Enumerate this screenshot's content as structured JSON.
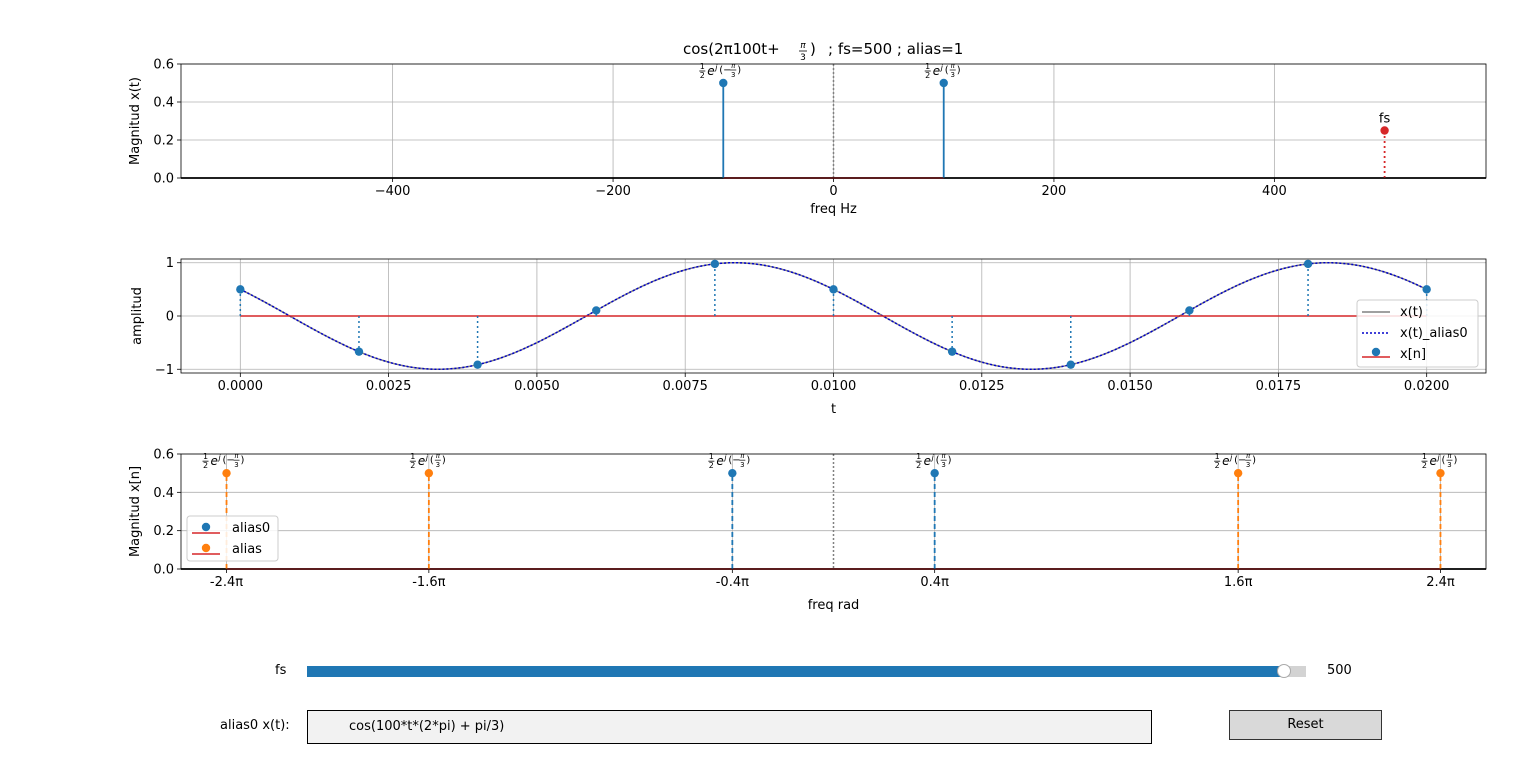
{
  "figure": {
    "title": "cos(2π100t + π/3)  ; fs=500  ; alias=1",
    "title_parts": {
      "main": "cos(2π100t+",
      "frac_num": "π",
      "frac_den": "3",
      "close": ")",
      "suffix": "; fs=500  ; alias=1"
    }
  },
  "chart_data": [
    {
      "type": "stem",
      "ylabel": "Magnitud x(t)",
      "xlabel": "freq Hz",
      "xlim": [
        -592,
        592
      ],
      "ylim": [
        0,
        0.6
      ],
      "xticks": [
        -400,
        -200,
        0,
        200,
        400
      ],
      "xtick_labels": [
        "−400",
        "−200",
        "0",
        "200",
        "400"
      ],
      "yticks": [
        0.0,
        0.2,
        0.4,
        0.6
      ],
      "ytick_labels": [
        "0.0",
        "0.2",
        "0.4",
        "0.6"
      ],
      "grid": true,
      "series": [
        {
          "color": "#1f77b4",
          "style": "solid",
          "points": [
            {
              "x": -100,
              "y": 0.5,
              "label": "½e^j(−π/3)"
            },
            {
              "x": 100,
              "y": 0.5,
              "label": "½e^j(π/3)"
            }
          ]
        },
        {
          "color": "#d62728",
          "style": "dotted",
          "points": [
            {
              "x": 500,
              "y": 0.25,
              "label": "fs"
            }
          ]
        }
      ],
      "vline": {
        "x": 0,
        "color": "#808080",
        "style": "dotted"
      },
      "baseline_segment": [
        -100,
        100
      ]
    },
    {
      "type": "line",
      "ylabel": "amplitud",
      "xlabel": "t",
      "xlim": [
        -0.001,
        0.021
      ],
      "ylim": [
        -1.07,
        1.07
      ],
      "xticks": [
        0,
        0.0025,
        0.005,
        0.0075,
        0.01,
        0.0125,
        0.015,
        0.0175,
        0.02
      ],
      "xtick_labels": [
        "0.0000",
        "0.0025",
        "0.0050",
        "0.0075",
        "0.0100",
        "0.0125",
        "0.0150",
        "0.0175",
        "0.0200"
      ],
      "yticks": [
        -1,
        0,
        1
      ],
      "ytick_labels": [
        "−1",
        "0",
        "1"
      ],
      "grid": true,
      "signal": {
        "freq": 100,
        "phase_over_pi": 0.3333333
      },
      "samples_t": [
        0,
        0.002,
        0.004,
        0.006,
        0.008,
        0.01,
        0.012,
        0.014,
        0.016,
        0.018,
        0.02
      ],
      "legend": {
        "location": "center-right",
        "entries": [
          "x(t)",
          "x(t)_alias0",
          "x[n]"
        ]
      },
      "colors": {
        "xt": "#808080",
        "alias": "#0000cc",
        "samples": "#1f77b4",
        "baseline": "#d62728"
      }
    },
    {
      "type": "stem",
      "ylabel": "Magnitud x[n]",
      "xlabel": "freq rad",
      "xlim_over_pi": [
        -2.58,
        2.58
      ],
      "ylim": [
        0,
        0.6
      ],
      "xticks_over_pi": [
        -2.4,
        -1.6,
        -0.4,
        0.4,
        1.6,
        2.4
      ],
      "xtick_labels": [
        "-2.4π",
        "-1.6π",
        "-0.4π",
        "0.4π",
        "1.6π",
        "2.4π"
      ],
      "yticks": [
        0.0,
        0.2,
        0.4,
        0.6
      ],
      "ytick_labels": [
        "0.0",
        "0.2",
        "0.4",
        "0.6"
      ],
      "grid": true,
      "series": [
        {
          "name": "alias0",
          "color": "#1f77b4",
          "style": "dashed",
          "points": [
            {
              "x_over_pi": -0.4,
              "y": 0.5,
              "label": "½e^j(−π/3)"
            },
            {
              "x_over_pi": 0.4,
              "y": 0.5,
              "label": "½e^j(π/3)"
            }
          ]
        },
        {
          "name": "alias",
          "color": "#ff7f0e",
          "style": "dashed",
          "points": [
            {
              "x_over_pi": -2.4,
              "y": 0.5,
              "label": "½e^j(−π/3)"
            },
            {
              "x_over_pi": -1.6,
              "y": 0.5,
              "label": "½e^j(π/3)"
            },
            {
              "x_over_pi": 1.6,
              "y": 0.5,
              "label": "½e^j(−π/3)"
            },
            {
              "x_over_pi": 2.4,
              "y": 0.5,
              "label": "½e^j(π/3)"
            }
          ]
        }
      ],
      "vline": {
        "x": 0,
        "color": "#808080",
        "style": "dotted"
      },
      "legend": {
        "location": "center-left",
        "entries": [
          "alias0",
          "alias"
        ]
      }
    }
  ],
  "controls": {
    "fs_label": "fs",
    "fs_value": "500",
    "fs_fraction": 0.978,
    "alias_label": "alias0 x(t):",
    "alias_value": "cos(100*t*(2*pi) + pi/3)",
    "reset_label": "Reset"
  }
}
